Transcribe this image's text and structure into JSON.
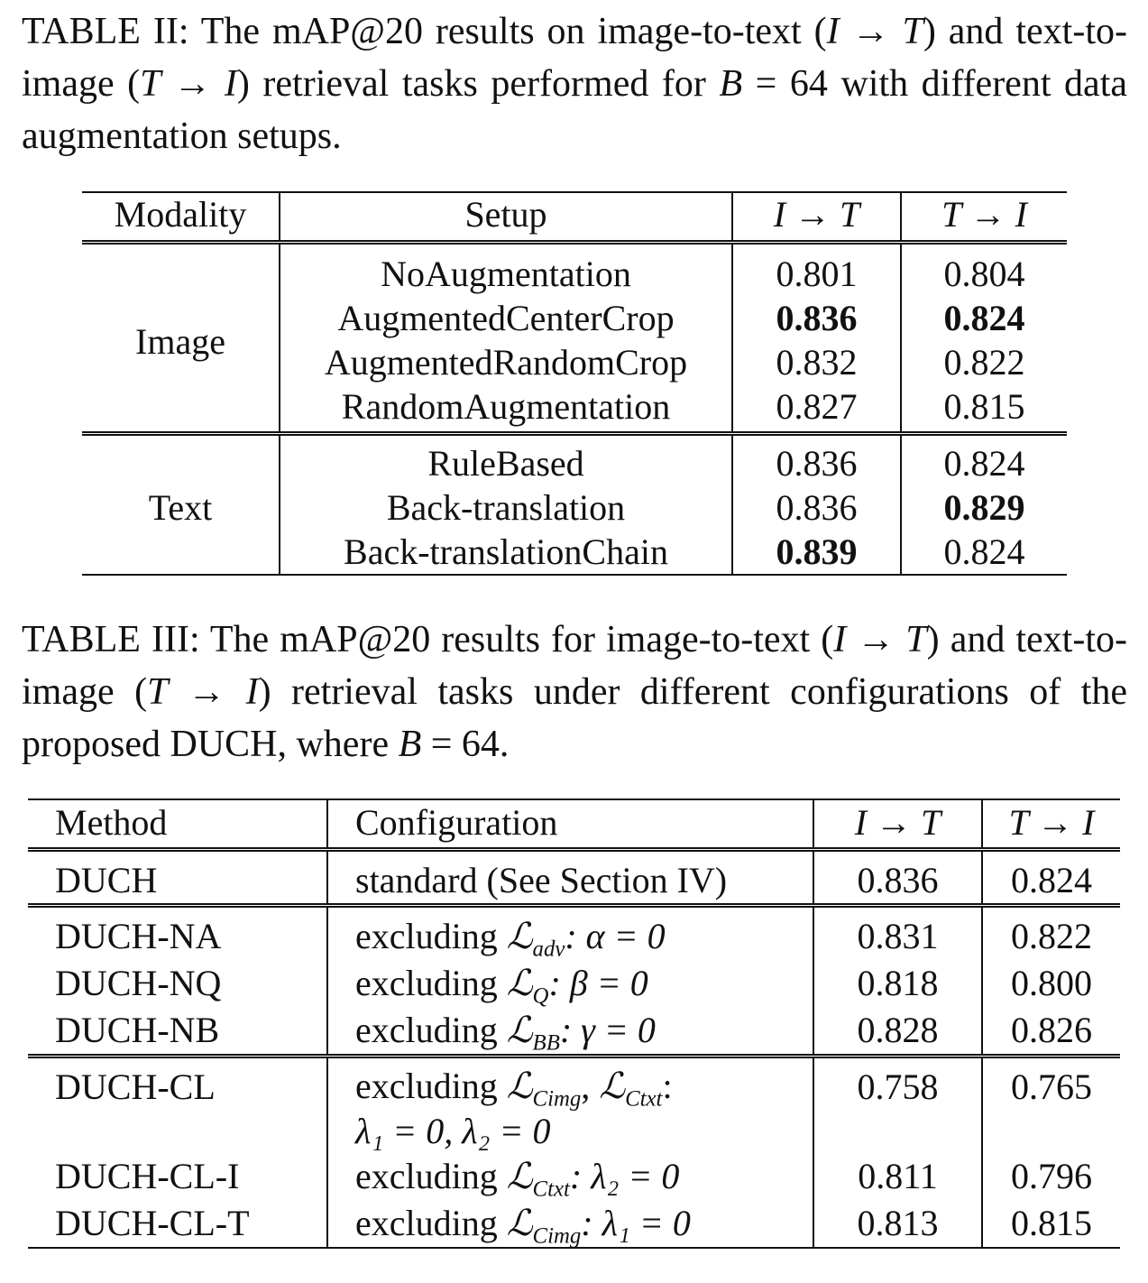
{
  "table2": {
    "caption_label": "TABLE II:",
    "caption_text_1": " The mAP@20 results on image-to-text (",
    "caption_math_1": "I → T",
    "caption_text_2": ") and text-to-image (",
    "caption_math_2": "T → I",
    "caption_text_3": ") retrieval tasks performed for ",
    "caption_math_3": "B",
    "caption_text_4": " = 64 with different data augmentation setups.",
    "headers": [
      "Modality",
      "Setup",
      "I → T",
      "T → I"
    ],
    "groups": [
      {
        "modality": "Image",
        "rows": [
          {
            "setup": "NoAugmentation",
            "it": "0.801",
            "ti": "0.804"
          },
          {
            "setup": "AugmentedCenterCrop",
            "it": "0.836",
            "ti": "0.824"
          },
          {
            "setup": "AugmentedRandomCrop",
            "it": "0.832",
            "ti": "0.822"
          },
          {
            "setup": "RandomAugmentation",
            "it": "0.827",
            "ti": "0.815"
          }
        ]
      },
      {
        "modality": "Text",
        "rows": [
          {
            "setup": "RuleBased",
            "it": "0.836",
            "ti": "0.824"
          },
          {
            "setup": "Back-translation",
            "it": "0.836",
            "ti": "0.829"
          },
          {
            "setup": "Back-translationChain",
            "it": "0.839",
            "ti": "0.824"
          }
        ]
      }
    ]
  },
  "table3": {
    "caption_label": "TABLE III:",
    "caption_text_1": " The mAP@20 results for image-to-text (",
    "caption_math_1": "I → T",
    "caption_text_2": ") and text-to-image (",
    "caption_math_2": "T → I",
    "caption_text_3": ") retrieval tasks under different configurations of the proposed DUCH, where ",
    "caption_math_3": "B",
    "caption_text_4": " = 64.",
    "headers": [
      "Method",
      "Configuration",
      "I → T",
      "T → I"
    ],
    "rows": [
      {
        "method": "DUCH",
        "config": "standard (See Section IV)",
        "it": "0.836",
        "ti": "0.824"
      },
      {
        "method": "DUCH-NA",
        "config_pre": "excluding ",
        "loss": "ℒ",
        "loss_sub": "adv",
        "config_post": ": α = 0",
        "it": "0.831",
        "ti": "0.822"
      },
      {
        "method": "DUCH-NQ",
        "config_pre": "excluding ",
        "loss": "ℒ",
        "loss_sub": "Q",
        "config_post": ": β = 0",
        "it": "0.818",
        "ti": "0.800"
      },
      {
        "method": "DUCH-NB",
        "config_pre": "excluding ",
        "loss": "ℒ",
        "loss_sub": "BB",
        "config_post": ": γ = 0",
        "it": "0.828",
        "ti": "0.826"
      },
      {
        "method": "DUCH-CL",
        "config_pre": "excluding ",
        "loss": "ℒ",
        "loss_sub": "Cimg",
        "config_mid": ", ",
        "loss2": "ℒ",
        "loss2_sub": "Ctxt",
        "config_post": ":",
        "config_line2": "λ₁ = 0, λ₂ = 0",
        "it": "0.758",
        "ti": "0.765"
      },
      {
        "method": "DUCH-CL-I",
        "config_pre": "excluding ",
        "loss": "ℒ",
        "loss_sub": "Ctxt",
        "config_post": ": λ₂ = 0",
        "it": "0.811",
        "ti": "0.796"
      },
      {
        "method": "DUCH-CL-T",
        "config_pre": "excluding ",
        "loss": "ℒ",
        "loss_sub": "Cimg",
        "config_post": ": λ₁ = 0",
        "it": "0.813",
        "ti": "0.815"
      }
    ]
  }
}
